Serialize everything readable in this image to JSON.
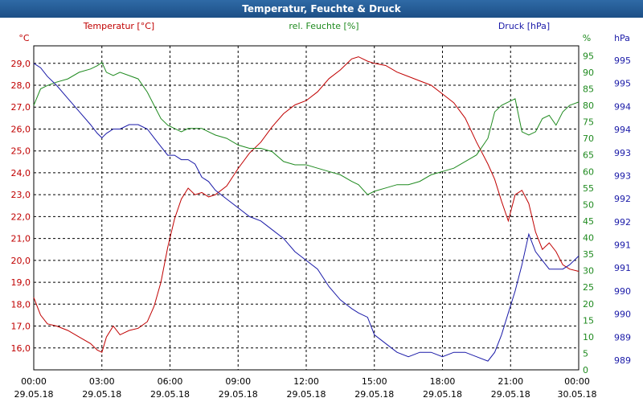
{
  "window": {
    "title": "Temperatur, Feuchte & Druck"
  },
  "chart_data": {
    "type": "line",
    "title": "Temperatur, Feuchte & Druck",
    "colors": {
      "temperature": "#c00000",
      "humidity": "#1f8a1f",
      "pressure": "#1a1aa8",
      "grid": "#000000"
    },
    "units": {
      "left": "°C",
      "right1": "%",
      "right2": "hPa"
    },
    "series_labels": {
      "temperature": "Temperatur [°C]",
      "humidity": "rel. Feuchte [%]",
      "pressure": "Druck [hPa]"
    },
    "x_ticks": [
      {
        "time": "00:00",
        "date": "29.05.18"
      },
      {
        "time": "03:00",
        "date": "29.05.18"
      },
      {
        "time": "06:00",
        "date": "29.05.18"
      },
      {
        "time": "09:00",
        "date": "29.05.18"
      },
      {
        "time": "12:00",
        "date": "29.05.18"
      },
      {
        "time": "15:00",
        "date": "29.05.18"
      },
      {
        "time": "18:00",
        "date": "29.05.18"
      },
      {
        "time": "21:00",
        "date": "29.05.18"
      },
      {
        "time": "00:00",
        "date": "30.05.18"
      }
    ],
    "xlim": [
      0,
      24
    ],
    "temperature_axis": {
      "ylim": [
        15.0,
        29.8
      ],
      "tick_values": [
        16,
        17,
        18,
        19,
        20,
        21,
        22,
        23,
        24,
        25,
        26,
        27,
        28,
        29
      ],
      "tick_labels": [
        "16,0",
        "17,0",
        "18,0",
        "19,0",
        "20,0",
        "21,0",
        "22,0",
        "23,0",
        "24,0",
        "25,0",
        "26,0",
        "27,0",
        "28,0",
        "29,0"
      ]
    },
    "humidity_axis": {
      "ylim": [
        0,
        98
      ],
      "tick_values": [
        0,
        5,
        10,
        15,
        20,
        25,
        30,
        35,
        40,
        45,
        50,
        55,
        60,
        65,
        70,
        75,
        80,
        85,
        90,
        95
      ],
      "tick_labels": [
        "0",
        "5",
        "10",
        "15",
        "20",
        "25",
        "30",
        "35",
        "40",
        "45",
        "50",
        "55",
        "60",
        "65",
        "70",
        "75",
        "80",
        "85",
        "90",
        "95"
      ]
    },
    "pressure_axis": {
      "ylim": [
        988.2,
        995.6
      ],
      "tick_labels": [
        "989",
        "989",
        "990",
        "990",
        "991",
        "991",
        "992",
        "992",
        "993",
        "993",
        "994",
        "994",
        "995",
        "995"
      ]
    },
    "series": [
      {
        "name": "Temperatur [°C]",
        "key": "temperature",
        "x": [
          0,
          0.3,
          0.6,
          1.0,
          1.5,
          2.0,
          2.5,
          2.8,
          3.0,
          3.2,
          3.5,
          3.8,
          4.2,
          4.6,
          5.0,
          5.3,
          5.6,
          5.9,
          6.2,
          6.5,
          6.8,
          7.1,
          7.4,
          7.7,
          8.0,
          8.5,
          9.0,
          9.5,
          10.0,
          10.5,
          11.0,
          11.5,
          12.0,
          12.5,
          13.0,
          13.5,
          14.0,
          14.3,
          14.7,
          15.0,
          15.5,
          16.0,
          16.5,
          17.0,
          17.5,
          18.0,
          18.5,
          19.0,
          19.5,
          20.0,
          20.3,
          20.6,
          20.9,
          21.2,
          21.5,
          21.8,
          22.1,
          22.4,
          22.7,
          23.0,
          23.3,
          23.6,
          24.0
        ],
        "values": [
          18.3,
          17.5,
          17.1,
          17.0,
          16.8,
          16.5,
          16.2,
          15.9,
          15.8,
          16.5,
          17.0,
          16.6,
          16.8,
          16.9,
          17.2,
          17.9,
          19.0,
          20.6,
          21.9,
          22.8,
          23.3,
          23.0,
          23.1,
          22.9,
          23.0,
          23.4,
          24.2,
          24.9,
          25.4,
          26.1,
          26.7,
          27.1,
          27.3,
          27.7,
          28.3,
          28.7,
          29.2,
          29.3,
          29.1,
          29.0,
          28.9,
          28.6,
          28.4,
          28.2,
          28.0,
          27.6,
          27.2,
          26.5,
          25.4,
          24.4,
          23.7,
          22.7,
          21.8,
          23.0,
          23.2,
          22.6,
          21.3,
          20.5,
          20.8,
          20.4,
          19.8,
          19.6,
          19.5
        ]
      },
      {
        "name": "rel. Feuchte [%]",
        "key": "humidity",
        "x": [
          0,
          0.3,
          0.6,
          1.0,
          1.5,
          2.0,
          2.5,
          2.8,
          3.0,
          3.2,
          3.5,
          3.8,
          4.2,
          4.6,
          5.0,
          5.3,
          5.6,
          5.9,
          6.2,
          6.5,
          6.8,
          7.1,
          7.4,
          7.7,
          8.0,
          8.5,
          9.0,
          9.5,
          10.0,
          10.5,
          11.0,
          11.5,
          12.0,
          12.5,
          13.0,
          13.5,
          14.0,
          14.3,
          14.7,
          15.0,
          15.5,
          16.0,
          16.5,
          17.0,
          17.5,
          18.0,
          18.5,
          19.0,
          19.5,
          20.0,
          20.3,
          20.6,
          20.9,
          21.2,
          21.5,
          21.8,
          22.1,
          22.4,
          22.7,
          23.0,
          23.3,
          23.6,
          24.0
        ],
        "values": [
          80,
          85,
          86,
          87,
          88,
          90,
          91,
          92,
          93,
          90,
          89,
          90,
          89,
          88,
          84,
          80,
          76,
          74,
          73,
          72,
          73,
          73,
          73,
          72,
          71,
          70,
          68,
          67,
          67,
          66,
          63,
          62,
          62,
          61,
          60,
          59,
          57,
          56,
          53,
          54,
          55,
          56,
          56,
          57,
          59,
          60,
          61,
          63,
          65,
          70,
          78,
          80,
          81,
          82,
          72,
          71,
          72,
          76,
          77,
          74,
          78,
          80,
          81
        ]
      },
      {
        "name": "Druck [hPa]",
        "key": "pressure",
        "x": [
          0,
          0.3,
          0.6,
          1.0,
          1.5,
          2.0,
          2.5,
          2.8,
          3.0,
          3.2,
          3.5,
          3.8,
          4.2,
          4.6,
          5.0,
          5.3,
          5.6,
          5.9,
          6.2,
          6.5,
          6.8,
          7.1,
          7.4,
          7.7,
          8.0,
          8.5,
          9.0,
          9.5,
          10.0,
          10.5,
          11.0,
          11.5,
          12.0,
          12.5,
          13.0,
          13.5,
          14.0,
          14.3,
          14.7,
          15.0,
          15.5,
          16.0,
          16.5,
          17.0,
          17.5,
          18.0,
          18.5,
          19.0,
          19.5,
          20.0,
          20.3,
          20.6,
          20.9,
          21.2,
          21.5,
          21.8,
          22.1,
          22.4,
          22.7,
          23.0,
          23.3,
          23.6,
          24.0
        ],
        "values": [
          995.2,
          995.1,
          994.9,
          994.7,
          994.4,
          994.1,
          993.8,
          993.6,
          993.5,
          993.6,
          993.7,
          993.7,
          993.8,
          993.8,
          993.7,
          993.5,
          993.3,
          993.1,
          993.1,
          993.0,
          993.0,
          992.9,
          992.6,
          992.5,
          992.3,
          992.1,
          991.9,
          991.7,
          991.6,
          991.4,
          991.2,
          990.9,
          990.7,
          990.5,
          990.1,
          989.8,
          989.6,
          989.5,
          989.4,
          989.0,
          988.8,
          988.6,
          988.5,
          988.6,
          988.6,
          988.5,
          988.6,
          988.6,
          988.5,
          988.4,
          988.6,
          989.0,
          989.5,
          990.0,
          990.6,
          991.3,
          990.9,
          990.7,
          990.5,
          990.5,
          990.5,
          990.6,
          990.8
        ]
      }
    ]
  }
}
